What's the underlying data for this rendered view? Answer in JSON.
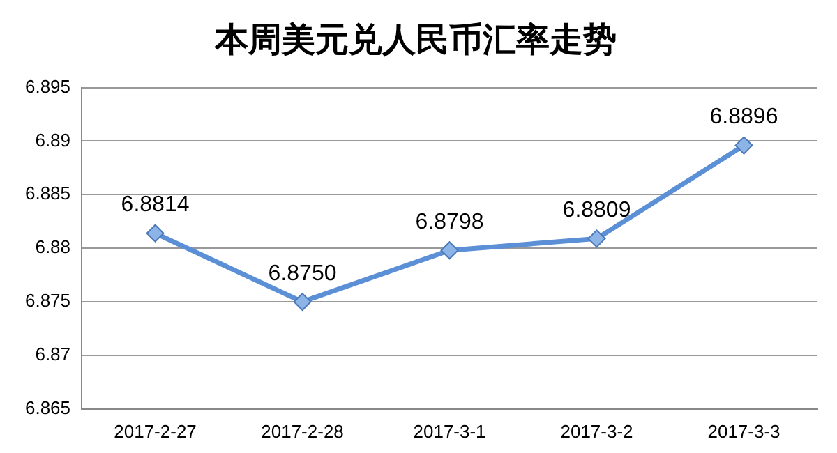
{
  "chart_data": {
    "type": "line",
    "title": "本周美元兑人民币汇率走势",
    "categories": [
      "2017-2-27",
      "2017-2-28",
      "2017-3-1",
      "2017-3-2",
      "2017-3-3"
    ],
    "series": [
      {
        "color": "#5b8fd6",
        "values": [
          6.8814,
          6.875,
          6.8798,
          6.8809,
          6.8896
        ]
      }
    ],
    "value_labels": [
      "6.8814",
      "6.8750",
      "6.8798",
      "6.8809",
      "6.8896"
    ],
    "ylim": [
      6.865,
      6.895
    ],
    "yticks": [
      6.865,
      6.87,
      6.875,
      6.88,
      6.885,
      6.89,
      6.895
    ],
    "grid": "y",
    "legend": false,
    "marker": "diamond",
    "line_style": "solid"
  }
}
